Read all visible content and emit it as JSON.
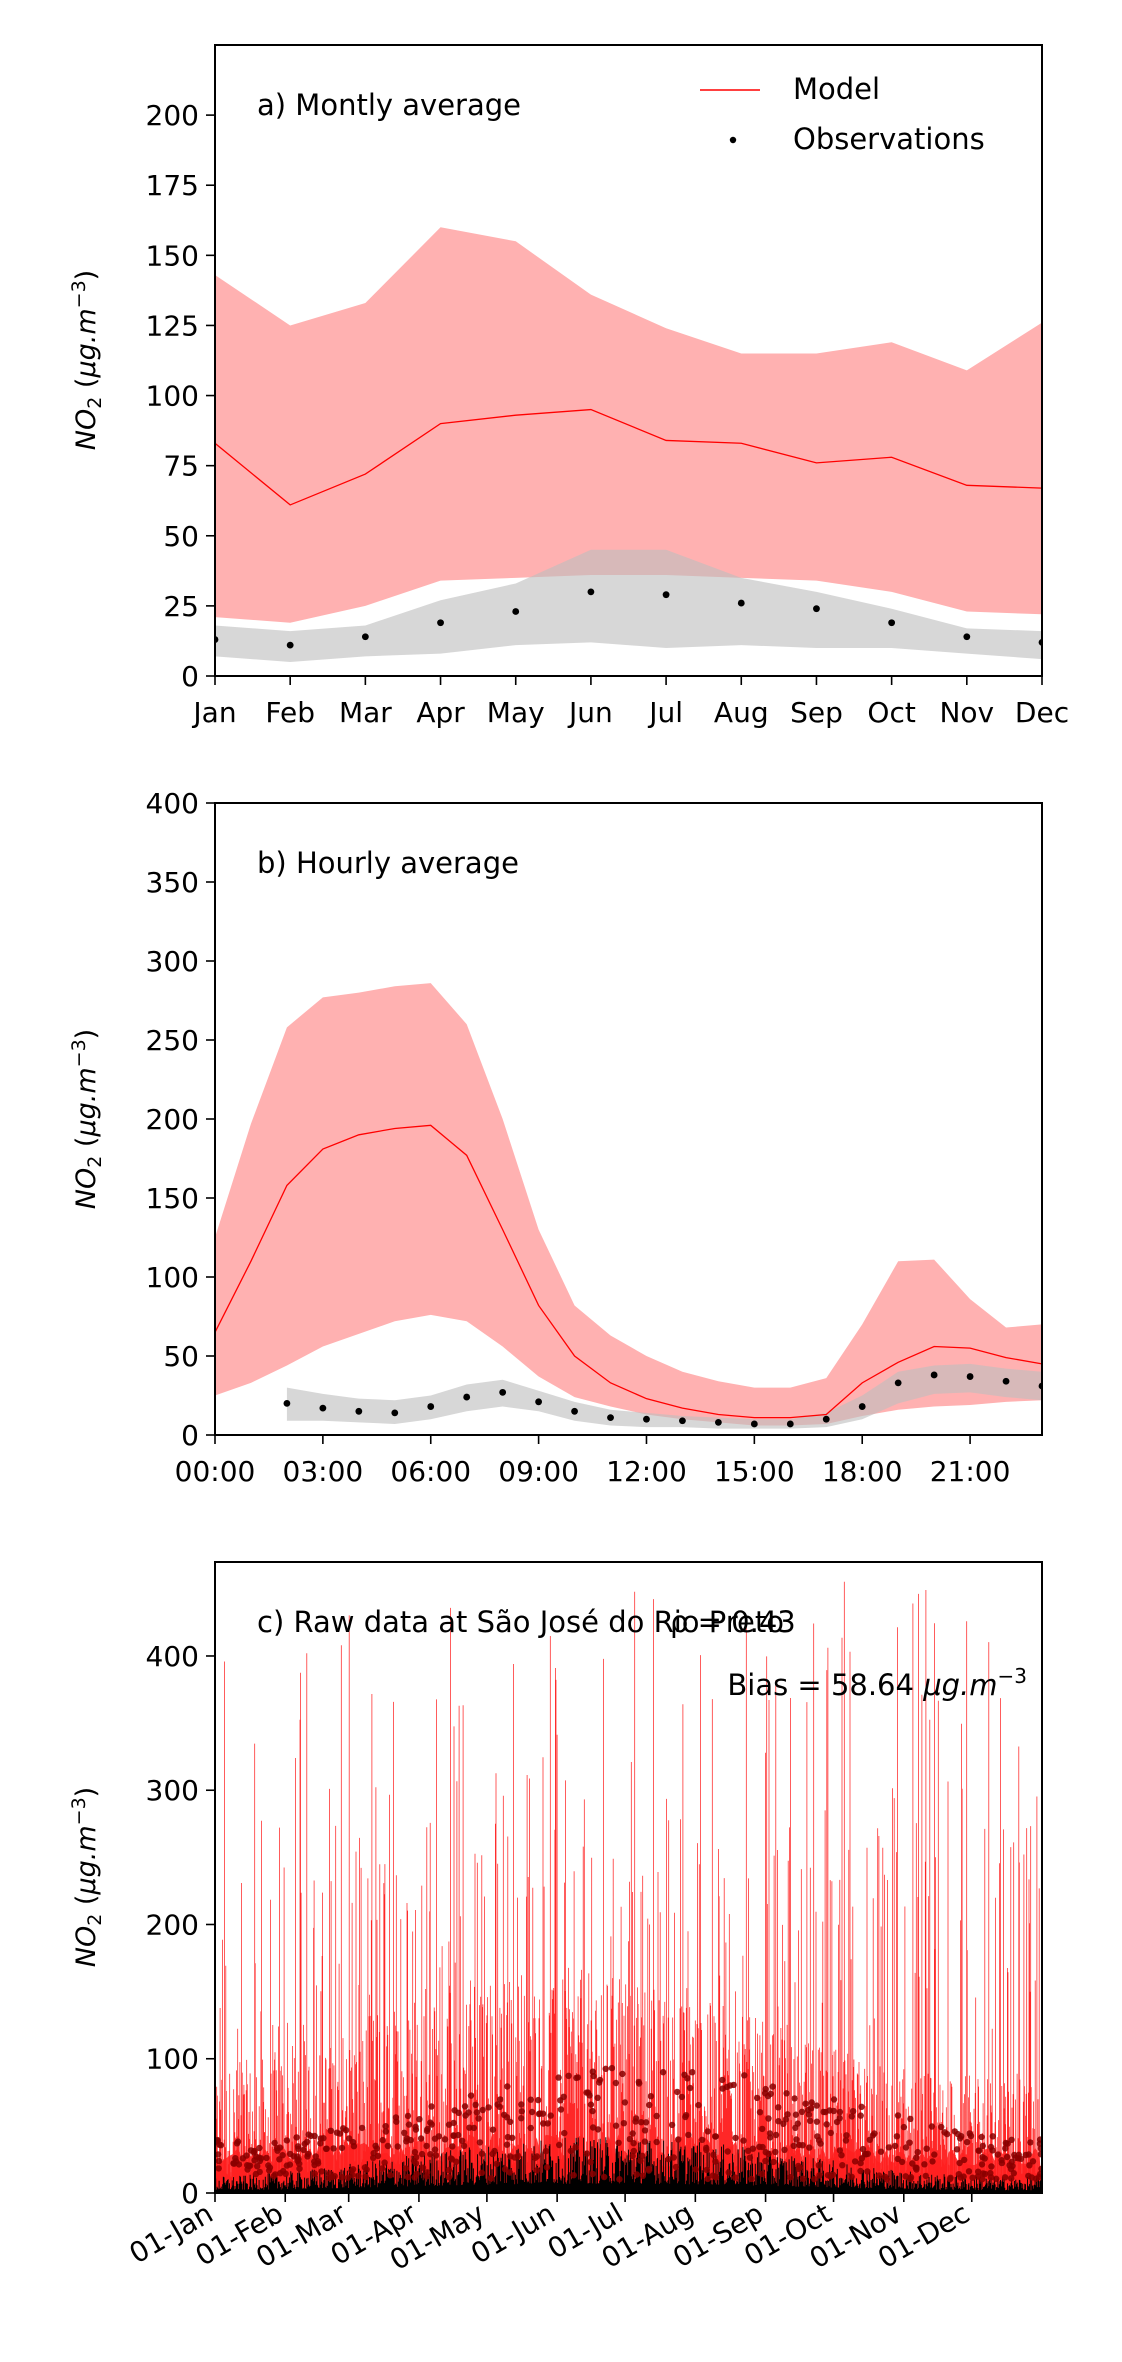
{
  "chart_data": [
    {
      "type": "line",
      "panel_label": "a) Montly average",
      "ylabel": "NO₂ (μg.m⁻³)",
      "ylim": [
        0,
        225
      ],
      "yticks": [
        0,
        25,
        50,
        75,
        100,
        125,
        150,
        175,
        200
      ],
      "categories": [
        "Jan",
        "Feb",
        "Mar",
        "Apr",
        "May",
        "Jun",
        "Jul",
        "Aug",
        "Sep",
        "Oct",
        "Nov",
        "Dec"
      ],
      "legend": {
        "placement": "top-right",
        "entries": [
          "Model",
          "Observations"
        ]
      },
      "series": [
        {
          "name": "Model",
          "kind": "line",
          "color": "#ff0000",
          "values": [
            83,
            61,
            72,
            90,
            93,
            95,
            84,
            83,
            76,
            78,
            68,
            67
          ],
          "band_upper": [
            143,
            125,
            133,
            160,
            155,
            136,
            124,
            115,
            115,
            119,
            109,
            126
          ],
          "band_lower": [
            21,
            19,
            25,
            34,
            35,
            36,
            36,
            35,
            34,
            30,
            23,
            22
          ]
        },
        {
          "name": "Observations",
          "kind": "points",
          "color": "#000000",
          "values": [
            13,
            11,
            14,
            19,
            23,
            30,
            29,
            26,
            24,
            19,
            14,
            12
          ],
          "band_upper": [
            18,
            16,
            18,
            27,
            33,
            45,
            45,
            35,
            30,
            24,
            17,
            16
          ],
          "band_lower": [
            7,
            5,
            7,
            8,
            11,
            12,
            10,
            11,
            10,
            10,
            8,
            6
          ]
        }
      ]
    },
    {
      "type": "line",
      "panel_label": "b) Hourly average",
      "ylabel": "NO₂ (μg.m⁻³)",
      "ylim": [
        0,
        400
      ],
      "yticks": [
        0,
        50,
        100,
        150,
        200,
        250,
        300,
        350,
        400
      ],
      "xlim": [
        0,
        23
      ],
      "xticks": [
        0,
        3,
        6,
        9,
        12,
        15,
        18,
        21
      ],
      "xtick_labels": [
        "00:00",
        "03:00",
        "06:00",
        "09:00",
        "12:00",
        "15:00",
        "18:00",
        "21:00"
      ],
      "model": {
        "x": [
          0,
          1,
          2,
          3,
          4,
          5,
          6,
          7,
          8,
          9,
          10,
          11,
          12,
          13,
          14,
          15,
          16,
          17,
          18,
          19,
          20,
          21,
          22,
          23
        ],
        "values": [
          65,
          110,
          158,
          181,
          190,
          194,
          196,
          177,
          130,
          82,
          50,
          33,
          23,
          17,
          13,
          11,
          11,
          13,
          33,
          46,
          56,
          55,
          49,
          45
        ],
        "band_upper": [
          125,
          197,
          258,
          277,
          280,
          284,
          286,
          260,
          200,
          130,
          82,
          63,
          50,
          40,
          34,
          30,
          30,
          36,
          70,
          110,
          111,
          86,
          68,
          70
        ],
        "band_lower": [
          25,
          33,
          44,
          56,
          64,
          72,
          76,
          72,
          56,
          37,
          24,
          18,
          13,
          10,
          8,
          6,
          6,
          7,
          12,
          16,
          18,
          19,
          21,
          22
        ]
      },
      "observations": {
        "x": [
          2,
          3,
          4,
          5,
          6,
          7,
          8,
          9,
          10,
          11,
          12,
          13,
          14,
          15,
          16,
          17,
          18,
          19,
          20,
          21,
          22,
          23
        ],
        "values": [
          20,
          17,
          15,
          14,
          18,
          24,
          27,
          21,
          15,
          11,
          10,
          9,
          8,
          7,
          7,
          10,
          18,
          33,
          38,
          37,
          34,
          31
        ],
        "band_upper": [
          30,
          26,
          23,
          22,
          25,
          32,
          35,
          28,
          21,
          16,
          14,
          12,
          11,
          10,
          10,
          14,
          25,
          40,
          44,
          45,
          42,
          40
        ],
        "band_lower": [
          9,
          9,
          8,
          7,
          10,
          15,
          18,
          15,
          9,
          6,
          5,
          5,
          4,
          4,
          4,
          5,
          10,
          20,
          26,
          27,
          24,
          22
        ]
      }
    },
    {
      "type": "line",
      "panel_label": "c) Raw data at São José do Rio Preto",
      "stats": {
        "r": "ρ = 0.43",
        "bias": "Bias = 58.64 μg.m⁻³"
      },
      "ylabel": "NO₂ (μg.m⁻³)",
      "ylim": [
        0,
        470
      ],
      "yticks": [
        0,
        100,
        200,
        300,
        400
      ],
      "x_range_days": [
        0,
        365
      ],
      "xtick_labels": [
        "01-Jan",
        "01-Feb",
        "01-Mar",
        "01-Apr",
        "01-May",
        "01-Jun",
        "01-Jul",
        "01-Aug",
        "01-Sep",
        "01-Oct",
        "01-Nov",
        "01-Dec"
      ],
      "xtick_days": [
        0,
        31,
        59,
        90,
        120,
        151,
        181,
        212,
        243,
        273,
        304,
        334
      ],
      "series": [
        {
          "name": "Model",
          "color": "#ff0000",
          "description": "hourly modeled NO2, typically 10-250 with peaks reaching ~460"
        },
        {
          "name": "Observations",
          "color": "#000000",
          "description": "hourly observed NO2, mostly 0-30 with peaks up to ~95"
        }
      ]
    }
  ]
}
